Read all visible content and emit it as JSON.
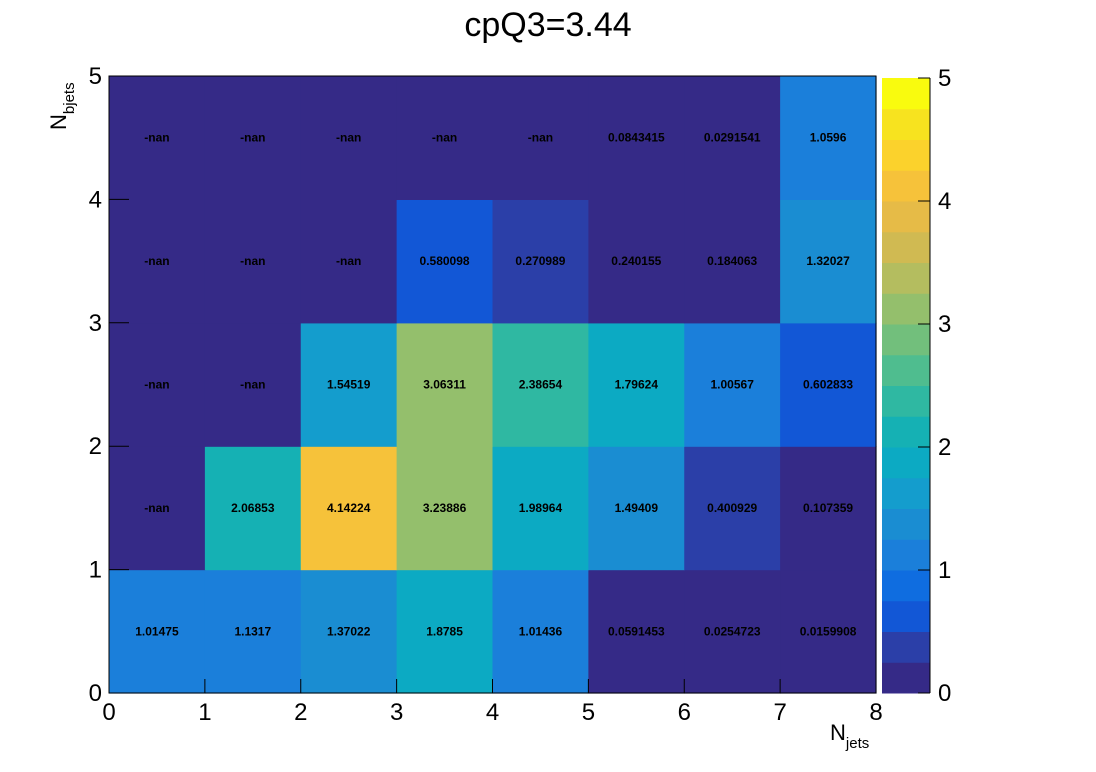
{
  "chart_data": {
    "type": "heatmap",
    "title": "cpQ3=3.44",
    "xlabel": {
      "main": "N",
      "sub": "jets"
    },
    "ylabel": {
      "main": "N",
      "sub": "bjets"
    },
    "xlim": [
      0,
      8
    ],
    "ylim": [
      0,
      5
    ],
    "zlim": [
      0,
      5
    ],
    "x_ticks": [
      "0",
      "1",
      "2",
      "3",
      "4",
      "5",
      "6",
      "7",
      "8"
    ],
    "y_ticks": [
      "0",
      "1",
      "2",
      "3",
      "4",
      "5"
    ],
    "z_ticks": [
      "0",
      "1",
      "2",
      "3",
      "4",
      "5"
    ],
    "palette": [
      "#352a87",
      "#2b3fa8",
      "#1257d6",
      "#0f6de0",
      "#1b7fda",
      "#1a8dd2",
      "#149dcd",
      "#0caac3",
      "#15b1b4",
      "#2fb8a2",
      "#4fbd8f",
      "#72bf7c",
      "#94bf6c",
      "#b4bd5f",
      "#d0ba52",
      "#e6bb47",
      "#f6c23a",
      "#fbd22c",
      "#f7e31f",
      "#f9fb0e"
    ],
    "rows": [
      {
        "y_bin": 0,
        "labels": [
          "1.01475",
          "1.1317",
          "1.37022",
          "1.8785",
          "1.01436",
          "0.0591453",
          "0.0254723",
          "0.0159908"
        ],
        "values": [
          1.01475,
          1.1317,
          1.37022,
          1.8785,
          1.01436,
          0.0591453,
          0.0254723,
          0.0159908
        ]
      },
      {
        "y_bin": 1,
        "labels": [
          "-nan",
          "2.06853",
          "4.14224",
          "3.23886",
          "1.98964",
          "1.49409",
          "0.400929",
          "0.107359"
        ],
        "values": [
          null,
          2.06853,
          4.14224,
          3.23886,
          1.98964,
          1.49409,
          0.400929,
          0.107359
        ]
      },
      {
        "y_bin": 2,
        "labels": [
          "-nan",
          "-nan",
          "1.54519",
          "3.06311",
          "2.38654",
          "1.79624",
          "1.00567",
          "0.602833"
        ],
        "values": [
          null,
          null,
          1.54519,
          3.06311,
          2.38654,
          1.79624,
          1.00567,
          0.602833
        ]
      },
      {
        "y_bin": 3,
        "labels": [
          "-nan",
          "-nan",
          "-nan",
          "0.580098",
          "0.270989",
          "0.240155",
          "0.184063",
          "1.32027"
        ],
        "values": [
          null,
          null,
          null,
          0.580098,
          0.270989,
          0.240155,
          0.184063,
          1.32027
        ]
      },
      {
        "y_bin": 4,
        "labels": [
          "-nan",
          "-nan",
          "-nan",
          "-nan",
          "-nan",
          "0.0843415",
          "0.0291541",
          "1.0596"
        ],
        "values": [
          null,
          null,
          null,
          null,
          null,
          0.0843415,
          0.0291541,
          1.0596
        ]
      }
    ],
    "grid": false,
    "legend": "colorbar-right"
  }
}
